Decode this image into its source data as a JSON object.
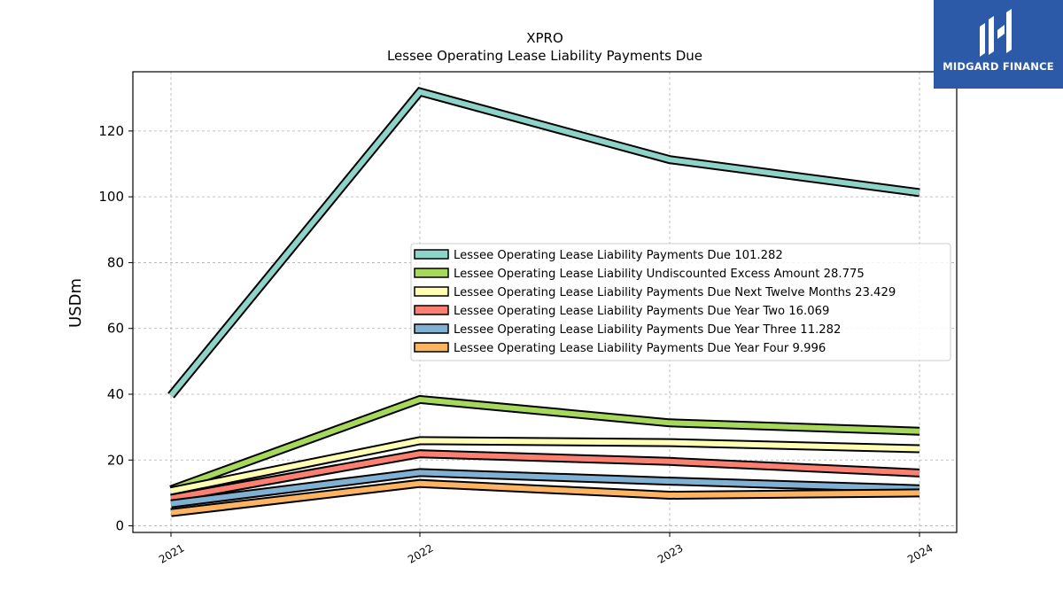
{
  "brand": {
    "name": "MIDGARD FINANCE",
    "bg_color": "#2d5aa8",
    "icon": "midgard-logo-icon"
  },
  "chart_data": {
    "type": "line",
    "title": "XPRO",
    "subtitle": "Lessee Operating Lease Liability Payments Due",
    "xlabel": "",
    "ylabel": "USDm",
    "categories": [
      "2021",
      "2022",
      "2023",
      "2024"
    ],
    "ylim": [
      -2,
      138
    ],
    "yticks": [
      0,
      20,
      40,
      60,
      80,
      100,
      120
    ],
    "grid": true,
    "legend_position": "center-right",
    "series": [
      {
        "name": "Lessee Operating Lease Liability Payments Due",
        "last_label": "101.282",
        "color": "#8dd3c7",
        "values": [
          39.6,
          131.9,
          111.3,
          101.282
        ]
      },
      {
        "name": "Lessee Operating Lease Liability Undiscounted Excess Amount",
        "last_label": "28.775",
        "color": "#a6d85b",
        "values": [
          11.0,
          38.4,
          31.3,
          28.775
        ]
      },
      {
        "name": "Lessee Operating Lease Liability Payments Due Next Twelve Months",
        "last_label": "23.429",
        "color": "#ffffb3",
        "values": [
          10.6,
          25.9,
          25.3,
          23.429
        ]
      },
      {
        "name": "Lessee Operating Lease Liability Payments Due Year Two",
        "last_label": "16.069",
        "color": "#fb8072",
        "values": [
          8.4,
          21.9,
          19.6,
          16.069
        ]
      },
      {
        "name": "Lessee Operating Lease Liability Payments Due Year Three",
        "last_label": "11.282",
        "color": "#80b1d3",
        "values": [
          6.7,
          16.2,
          13.6,
          11.282
        ]
      },
      {
        "name": "Lessee Operating Lease Liability Payments Due Year Four",
        "last_label": "9.996",
        "color": "#fdb462",
        "values": [
          4.0,
          12.9,
          9.3,
          9.996
        ]
      }
    ]
  }
}
